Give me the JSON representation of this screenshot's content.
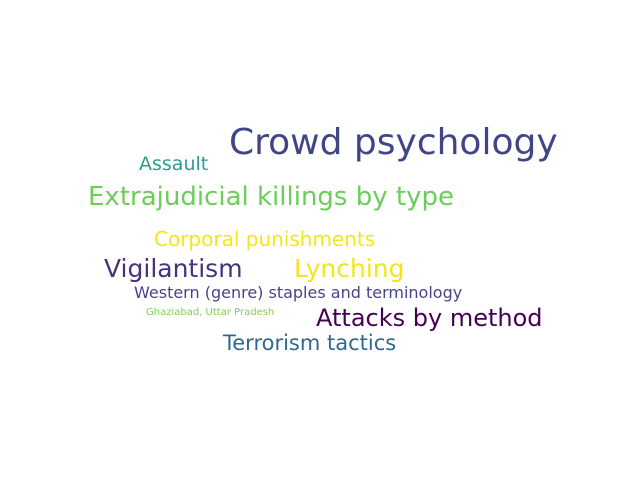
{
  "words": [
    {
      "id": "crowd-psychology",
      "text": "Crowd psychology",
      "color": "#414487"
    },
    {
      "id": "assault",
      "text": "Assault",
      "color": "#2a9d8f"
    },
    {
      "id": "extrajudicial-killings",
      "text": "Extrajudicial killings by type",
      "color": "#6ccd5a"
    },
    {
      "id": "corporal-punishments",
      "text": "Corporal punishments",
      "color": "#f4e61e"
    },
    {
      "id": "vigilantism",
      "text": "Vigilantism",
      "color": "#46327e"
    },
    {
      "id": "lynching",
      "text": "Lynching",
      "color": "#f2e51d"
    },
    {
      "id": "western-genre",
      "text": "Western (genre) staples and terminology",
      "color": "#46458a"
    },
    {
      "id": "ghaziabad",
      "text": "Ghaziabad, Uttar Pradesh",
      "color": "#7ad151"
    },
    {
      "id": "attacks-by-method",
      "text": "Attacks by method",
      "color": "#440154"
    },
    {
      "id": "terrorism-tactics",
      "text": "Terrorism tactics",
      "color": "#31688e"
    }
  ]
}
